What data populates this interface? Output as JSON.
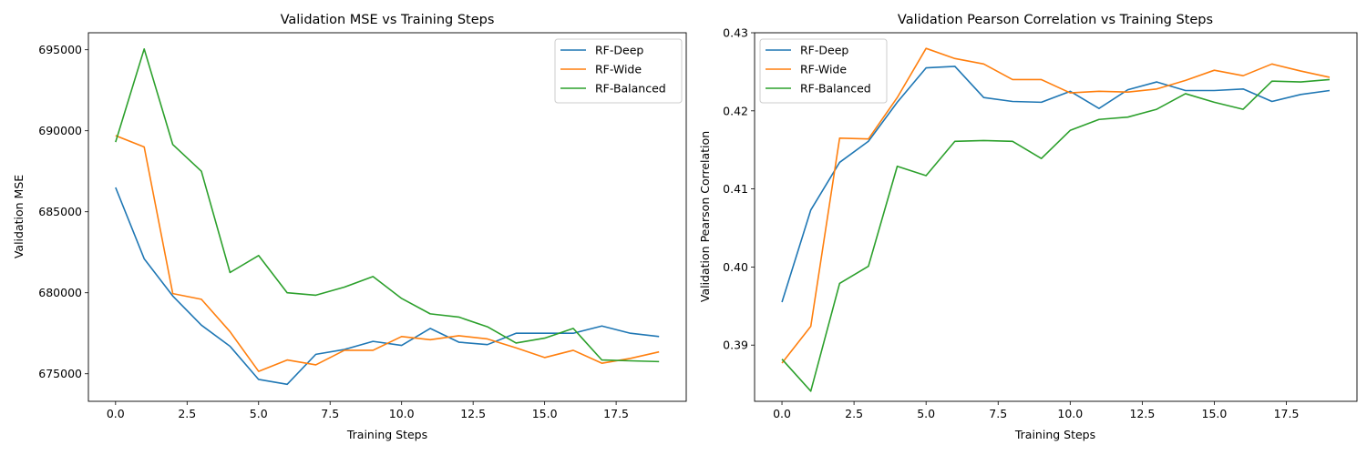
{
  "chart_data": [
    {
      "type": "line",
      "title": "Validation MSE vs Training Steps",
      "xlabel": "Training Steps",
      "ylabel": "Validation MSE",
      "xlim": [
        -0.95,
        19.95
      ],
      "ylim": [
        673300,
        696050
      ],
      "xticks": [
        0.0,
        2.5,
        5.0,
        7.5,
        10.0,
        12.5,
        15.0,
        17.5
      ],
      "xtick_labels": [
        "0.0",
        "2.5",
        "5.0",
        "7.5",
        "10.0",
        "12.5",
        "15.0",
        "17.5"
      ],
      "yticks": [
        675000,
        680000,
        685000,
        690000,
        695000
      ],
      "ytick_labels": [
        "675000",
        "680000",
        "685000",
        "690000",
        "695000"
      ],
      "grid": false,
      "legend_position": "top-right",
      "x": [
        0,
        1,
        2,
        3,
        4,
        5,
        6,
        7,
        8,
        9,
        10,
        11,
        12,
        13,
        14,
        15,
        16,
        17,
        18,
        19
      ],
      "series": [
        {
          "name": "RF-Deep",
          "color": "#1f77b4",
          "values": [
            686500,
            682100,
            679800,
            678000,
            676700,
            674650,
            674350,
            676200,
            676500,
            677000,
            676750,
            677800,
            676950,
            676800,
            677500,
            677500,
            677500,
            677950,
            677500,
            677300
          ]
        },
        {
          "name": "RF-Wide",
          "color": "#ff7f0e",
          "values": [
            689700,
            689000,
            679950,
            679600,
            677600,
            675150,
            675850,
            675550,
            676450,
            676450,
            677300,
            677100,
            677350,
            677150,
            676600,
            676000,
            676450,
            675650,
            675950,
            676350
          ]
        },
        {
          "name": "RF-Balanced",
          "color": "#2ca02c",
          "values": [
            689300,
            695050,
            689150,
            687500,
            681250,
            682300,
            680000,
            679850,
            680350,
            681000,
            679650,
            678700,
            678500,
            677900,
            676900,
            677200,
            677800,
            675850,
            675800,
            675750
          ]
        }
      ]
    },
    {
      "type": "line",
      "title": "Validation Pearson Correlation vs Training Steps",
      "xlabel": "Training Steps",
      "ylabel": "Validation Pearson Correlation",
      "xlim": [
        -0.95,
        19.95
      ],
      "ylim": [
        0.3828,
        0.43
      ],
      "xticks": [
        0.0,
        2.5,
        5.0,
        7.5,
        10.0,
        12.5,
        15.0,
        17.5
      ],
      "xtick_labels": [
        "0.0",
        "2.5",
        "5.0",
        "7.5",
        "10.0",
        "12.5",
        "15.0",
        "17.5"
      ],
      "yticks": [
        0.39,
        0.4,
        0.41,
        0.42,
        0.43
      ],
      "ytick_labels": [
        "0.39",
        "0.40",
        "0.41",
        "0.42",
        "0.43"
      ],
      "grid": false,
      "legend_position": "top-left",
      "x": [
        0,
        1,
        2,
        3,
        4,
        5,
        6,
        7,
        8,
        9,
        10,
        11,
        12,
        13,
        14,
        15,
        16,
        17,
        18,
        19
      ],
      "series": [
        {
          "name": "RF-Deep",
          "color": "#1f77b4",
          "values": [
            0.3955,
            0.4073,
            0.4134,
            0.4161,
            0.4211,
            0.4255,
            0.4257,
            0.4217,
            0.4212,
            0.4211,
            0.4225,
            0.4203,
            0.4227,
            0.4237,
            0.4226,
            0.4226,
            0.4228,
            0.4212,
            0.4221,
            0.4226
          ]
        },
        {
          "name": "RF-Wide",
          "color": "#ff7f0e",
          "values": [
            0.3877,
            0.3924,
            0.4165,
            0.4164,
            0.4217,
            0.428,
            0.4267,
            0.426,
            0.424,
            0.424,
            0.4223,
            0.4225,
            0.4224,
            0.4228,
            0.4239,
            0.4252,
            0.4245,
            0.426,
            0.4251,
            0.4243
          ]
        },
        {
          "name": "RF-Balanced",
          "color": "#2ca02c",
          "values": [
            0.3882,
            0.3841,
            0.3979,
            0.4001,
            0.4129,
            0.4117,
            0.4161,
            0.4162,
            0.4161,
            0.4139,
            0.4175,
            0.4189,
            0.4192,
            0.4202,
            0.4222,
            0.4211,
            0.4202,
            0.4238,
            0.4237,
            0.424
          ]
        }
      ]
    }
  ]
}
